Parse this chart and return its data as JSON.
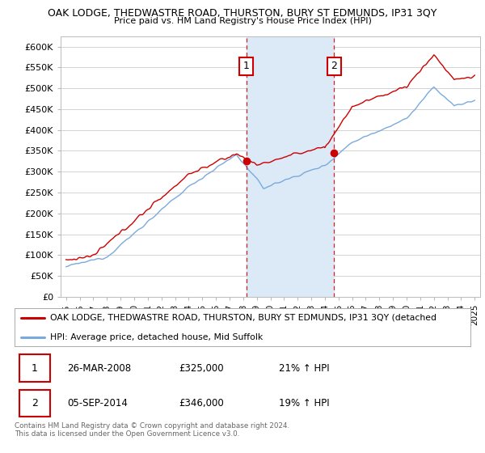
{
  "title1": "OAK LODGE, THEDWASTRE ROAD, THURSTON, BURY ST EDMUNDS, IP31 3QY",
  "title2": "Price paid vs. HM Land Registry's House Price Index (HPI)",
  "ylabel_ticks": [
    "£0",
    "£50K",
    "£100K",
    "£150K",
    "£200K",
    "£250K",
    "£300K",
    "£350K",
    "£400K",
    "£450K",
    "£500K",
    "£550K",
    "£600K"
  ],
  "ytick_vals": [
    0,
    50000,
    100000,
    150000,
    200000,
    250000,
    300000,
    350000,
    400000,
    450000,
    500000,
    550000,
    600000
  ],
  "ylim": [
    0,
    625000
  ],
  "xlim_start": 1994.6,
  "xlim_end": 2025.4,
  "xticks": [
    1995,
    1996,
    1997,
    1998,
    1999,
    2000,
    2001,
    2002,
    2003,
    2004,
    2005,
    2006,
    2007,
    2008,
    2009,
    2010,
    2011,
    2012,
    2013,
    2014,
    2015,
    2016,
    2017,
    2018,
    2019,
    2020,
    2021,
    2022,
    2023,
    2024,
    2025
  ],
  "sale1_x": 2008.22,
  "sale1_y": 325000,
  "sale1_label": "1",
  "sale2_x": 2014.67,
  "sale2_y": 346000,
  "sale2_label": "2",
  "shade_color": "#dce9f7",
  "sale_line_color": "#cc0000",
  "hpi_line_color": "#7aaadd",
  "legend_line1": "OAK LODGE, THEDWASTRE ROAD, THURSTON, BURY ST EDMUNDS, IP31 3QY (detached",
  "legend_line2": "HPI: Average price, detached house, Mid Suffolk",
  "table_row1": [
    "1",
    "26-MAR-2008",
    "£325,000",
    "21% ↑ HPI"
  ],
  "table_row2": [
    "2",
    "05-SEP-2014",
    "£346,000",
    "19% ↑ HPI"
  ],
  "footer": "Contains HM Land Registry data © Crown copyright and database right 2024.\nThis data is licensed under the Open Government Licence v3.0.",
  "bg_color": "#ffffff",
  "grid_color": "#cccccc"
}
